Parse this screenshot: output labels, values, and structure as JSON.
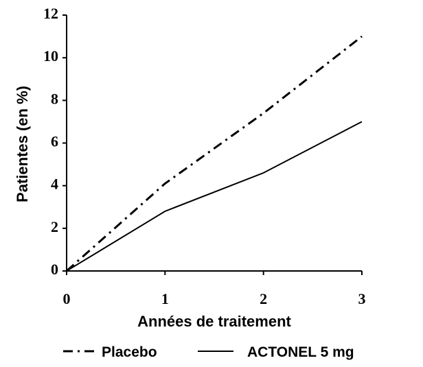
{
  "chart_data": {
    "type": "line",
    "x_label": "Années de traitement",
    "y_label": "Patientes (en %)",
    "x": [
      0,
      1,
      2,
      3
    ],
    "series": [
      {
        "name": "Placebo",
        "color": "#000000",
        "style": "dashdot",
        "values": [
          0,
          4.1,
          7.4,
          11
        ]
      },
      {
        "name": "ACTONEL 5 mg",
        "color": "#000000",
        "style": "solid",
        "values": [
          0,
          2.8,
          4.6,
          7
        ]
      }
    ],
    "xlim": [
      0,
      3
    ],
    "xticks": [
      0,
      1,
      2,
      3
    ],
    "ylim": [
      0,
      12
    ],
    "yticks": [
      0,
      2,
      4,
      6,
      8,
      10,
      12
    ],
    "legend": "bottom"
  }
}
